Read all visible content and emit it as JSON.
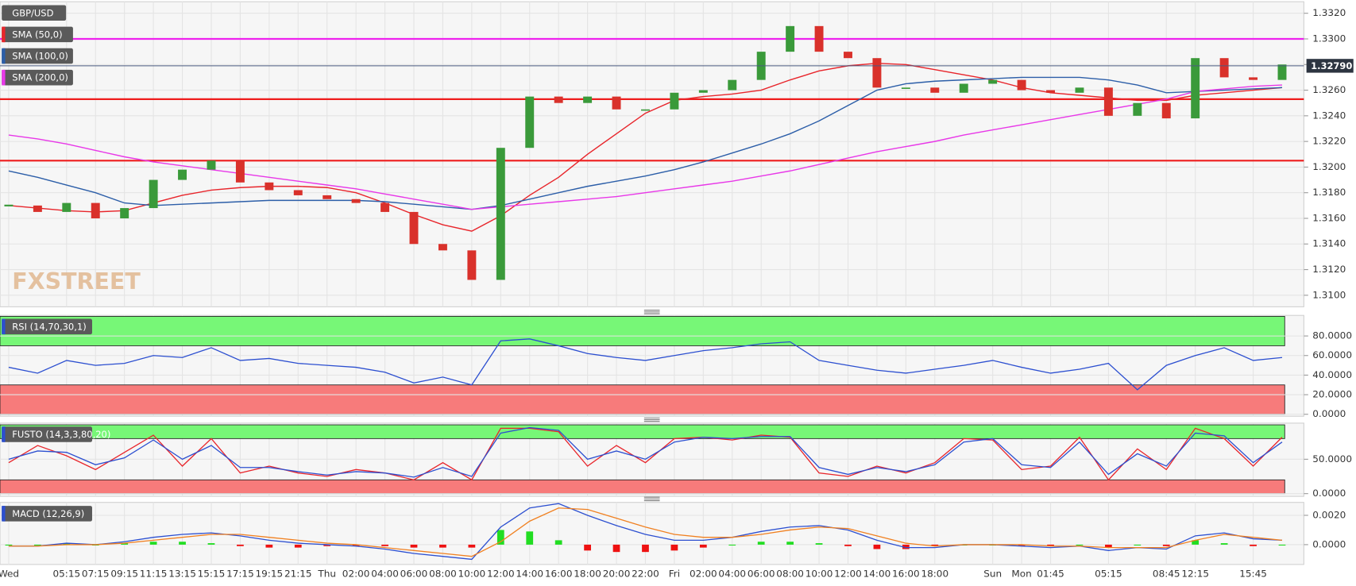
{
  "chart_data": [
    {
      "type": "candlestick",
      "title": "GBP/USD",
      "watermark": "FXSTREET",
      "up_color": "#3a9a3a",
      "down_color": "#d9312b",
      "values": [
        1.317,
        1.3165,
        1.3172,
        1.316,
        1.3168,
        1.319,
        1.3198,
        1.3205,
        1.3188,
        1.3182,
        1.3178,
        1.3175,
        1.3172,
        1.3165,
        1.314,
        1.3135,
        1.3112,
        1.3215,
        1.3255,
        1.325,
        1.3255,
        1.3245,
        1.3245,
        1.3258,
        1.326,
        1.3268,
        1.329,
        1.331,
        1.329,
        1.3285,
        1.3262,
        1.3262,
        1.3258,
        1.3265,
        1.3268,
        1.326,
        1.3258,
        1.3262,
        1.324,
        1.325,
        1.3238,
        1.3285,
        1.327,
        1.3268,
        1.328
      ],
      "series": [
        {
          "name": "SMA (50,0)",
          "color": "#e8252b",
          "values": [
            1.317,
            1.3168,
            1.3166,
            1.3165,
            1.3166,
            1.3172,
            1.3178,
            1.3182,
            1.3184,
            1.3185,
            1.3185,
            1.3184,
            1.318,
            1.3172,
            1.3163,
            1.3155,
            1.315,
            1.3162,
            1.3178,
            1.3192,
            1.321,
            1.3226,
            1.3242,
            1.3252,
            1.3255,
            1.3257,
            1.326,
            1.3268,
            1.3275,
            1.3279,
            1.3281,
            1.328,
            1.3276,
            1.3272,
            1.3268,
            1.3262,
            1.3258,
            1.3256,
            1.3254,
            1.3252,
            1.3252,
            1.3256,
            1.3258,
            1.326,
            1.3262
          ]
        },
        {
          "name": "SMA (100,0)",
          "color": "#2c5ea8",
          "values": [
            1.3197,
            1.3192,
            1.3186,
            1.318,
            1.3172,
            1.317,
            1.3171,
            1.3172,
            1.3173,
            1.3174,
            1.3174,
            1.3174,
            1.3174,
            1.3173,
            1.3171,
            1.3169,
            1.3167,
            1.317,
            1.3175,
            1.318,
            1.3185,
            1.3189,
            1.3193,
            1.3198,
            1.3204,
            1.3211,
            1.3218,
            1.3226,
            1.3236,
            1.3248,
            1.326,
            1.3265,
            1.3267,
            1.3268,
            1.3269,
            1.327,
            1.327,
            1.327,
            1.3268,
            1.3264,
            1.3258,
            1.3259,
            1.326,
            1.3261,
            1.3262
          ]
        },
        {
          "name": "SMA (200,0)",
          "color": "#e838e8",
          "values": [
            1.3225,
            1.3222,
            1.3218,
            1.3213,
            1.3208,
            1.3204,
            1.3201,
            1.3198,
            1.3195,
            1.3192,
            1.3189,
            1.3186,
            1.3183,
            1.3179,
            1.3175,
            1.3171,
            1.3167,
            1.3169,
            1.3171,
            1.3173,
            1.3175,
            1.3177,
            1.318,
            1.3183,
            1.3186,
            1.3189,
            1.3193,
            1.3197,
            1.3202,
            1.3207,
            1.3212,
            1.3216,
            1.322,
            1.3225,
            1.3229,
            1.3233,
            1.3237,
            1.3241,
            1.3245,
            1.3249,
            1.3253,
            1.3259,
            1.3261,
            1.3263,
            1.3264
          ]
        }
      ],
      "levels": [
        {
          "value": 1.33,
          "color": "#ee22ee"
        },
        {
          "value": 1.3253,
          "color": "#ee1c1c"
        },
        {
          "value": 1.3205,
          "color": "#ee1c1c"
        }
      ],
      "last": {
        "value": 1.3279,
        "label": "1.32790"
      },
      "ylim": [
        1.3091,
        1.3329
      ],
      "yticks": [
        {
          "value": 1.31,
          "label": "1.3100"
        },
        {
          "value": 1.312,
          "label": "1.3120"
        },
        {
          "value": 1.314,
          "label": "1.3140"
        },
        {
          "value": 1.316,
          "label": "1.3160"
        },
        {
          "value": 1.318,
          "label": "1.3180"
        },
        {
          "value": 1.32,
          "label": "1.3200"
        },
        {
          "value": 1.322,
          "label": "1.3220"
        },
        {
          "value": 1.324,
          "label": "1.3240"
        },
        {
          "value": 1.326,
          "label": "1.3260"
        },
        {
          "value": 1.328,
          "label": "1.3280"
        },
        {
          "value": 1.33,
          "label": "1.3300"
        },
        {
          "value": 1.332,
          "label": "1.3320"
        }
      ],
      "grid": true
    },
    {
      "type": "line",
      "title": "RSI (14,70,30,1)",
      "series": [
        {
          "color": "#2c4fd0",
          "values": [
            48,
            42,
            55,
            50,
            52,
            60,
            58,
            68,
            55,
            57,
            52,
            50,
            48,
            43,
            32,
            38,
            30,
            75,
            77,
            70,
            62,
            58,
            55,
            60,
            65,
            68,
            72,
            74,
            55,
            50,
            45,
            42,
            46,
            50,
            55,
            48,
            42,
            46,
            52,
            25,
            50,
            60,
            68,
            55,
            58
          ]
        }
      ],
      "bands": [
        {
          "from": 70,
          "to": 100,
          "color": "#77f777"
        },
        {
          "from": 0,
          "to": 30,
          "color": "#f77b7b"
        }
      ],
      "ylim": [
        -2,
        101
      ],
      "yticks": [
        {
          "value": 0,
          "label": "0.0000"
        },
        {
          "value": 20,
          "label": "20.0000"
        },
        {
          "value": 40,
          "label": "40.0000"
        },
        {
          "value": 60,
          "label": "60.0000"
        },
        {
          "value": 80,
          "label": "80.0000"
        }
      ],
      "grid": true
    },
    {
      "type": "line",
      "title": "FUSTO (14,3,3,80,20)",
      "series": [
        {
          "color": "#e8252b",
          "values": [
            45,
            70,
            55,
            35,
            60,
            85,
            40,
            80,
            30,
            40,
            30,
            25,
            35,
            30,
            20,
            45,
            20,
            95,
            95,
            90,
            40,
            70,
            45,
            80,
            82,
            78,
            85,
            82,
            30,
            25,
            40,
            30,
            45,
            80,
            78,
            35,
            40,
            82,
            20,
            65,
            35,
            95,
            80,
            40,
            82
          ]
        },
        {
          "color": "#2c4fd0",
          "values": [
            50,
            62,
            60,
            42,
            52,
            78,
            50,
            70,
            38,
            38,
            32,
            27,
            32,
            30,
            24,
            38,
            25,
            88,
            96,
            92,
            50,
            62,
            50,
            75,
            82,
            80,
            83,
            83,
            38,
            28,
            38,
            32,
            42,
            75,
            80,
            42,
            38,
            75,
            28,
            58,
            40,
            88,
            84,
            45,
            75
          ]
        }
      ],
      "bands": [
        {
          "from": 80,
          "to": 100,
          "color": "#77f777"
        },
        {
          "from": 0,
          "to": 20,
          "color": "#f77b7b"
        }
      ],
      "ylim": [
        -4,
        102.5
      ],
      "yticks": [
        {
          "value": 0,
          "label": "0.0000"
        },
        {
          "value": 50,
          "label": "50.0000"
        }
      ],
      "grid": true
    },
    {
      "type": "macd",
      "title": "MACD (12,26,9)",
      "categories": [
        "Wed",
        null,
        "05:15",
        "07:15",
        "09:15",
        "11:15",
        "13:15",
        "15:15",
        "17:15",
        "19:15",
        "21:15",
        "Thu",
        "02:00",
        "04:00",
        "06:00",
        "08:00",
        "10:00",
        "12:00",
        "14:00",
        "16:00",
        "18:00",
        "20:00",
        "22:00",
        "Fri",
        "02:00",
        "04:00",
        "06:00",
        "08:00",
        "10:00",
        "12:00",
        "14:00",
        "16:00",
        "18:00",
        null,
        "Sun",
        "Mon",
        "01:45",
        null,
        "05:15",
        null,
        "08:45",
        "12:15",
        null,
        "15:45",
        null
      ],
      "series": [
        {
          "color": "#2c4fd0",
          "values": [
            -0.0001,
            -0.0001,
            0.0001,
            0.0,
            0.0002,
            0.0005,
            0.0007,
            0.0008,
            0.0006,
            0.0003,
            0.0001,
            0.0,
            -0.0001,
            -0.0003,
            -0.0006,
            -0.0008,
            -0.001,
            0.0012,
            0.0025,
            0.0028,
            0.002,
            0.0013,
            0.0007,
            0.0003,
            0.0003,
            0.0005,
            0.0009,
            0.0012,
            0.0013,
            0.001,
            0.0003,
            -0.0002,
            -0.0002,
            0.0,
            0.0,
            -0.0001,
            -0.0002,
            -0.0001,
            -0.0004,
            -0.0002,
            -0.0003,
            0.0006,
            0.0008,
            0.0004,
            0.0003
          ]
        },
        {
          "color": "#f08020",
          "values": [
            -0.0001,
            -0.0001,
            0.0,
            0.0,
            0.0001,
            0.0003,
            0.0005,
            0.0007,
            0.0007,
            0.0005,
            0.0003,
            0.0001,
            0.0,
            -0.0002,
            -0.0004,
            -0.0006,
            -0.0008,
            0.0002,
            0.0016,
            0.0025,
            0.0024,
            0.0018,
            0.0012,
            0.0007,
            0.0005,
            0.0005,
            0.0007,
            0.001,
            0.0012,
            0.0011,
            0.0006,
            0.0001,
            -0.0001,
            0.0,
            0.0,
            0.0,
            -0.0001,
            -0.0001,
            -0.0002,
            -0.0002,
            -0.0002,
            0.0003,
            0.0007,
            0.0005,
            0.0003
          ]
        }
      ],
      "histogram": [
        0,
        0,
        0.0001,
        0,
        0.0001,
        0.0002,
        0.0002,
        0.0001,
        -0.0001,
        -0.0002,
        -0.0002,
        -0.0001,
        -0.0001,
        -0.0001,
        -0.0002,
        -0.0002,
        -0.0002,
        0.001,
        0.0009,
        0.0003,
        -0.0004,
        -0.0005,
        -0.0005,
        -0.0004,
        -0.0002,
        0,
        0.0002,
        0.0002,
        0.0001,
        -0.0001,
        -0.0003,
        -0.0003,
        -0.0001,
        0,
        0,
        -0.0001,
        -0.0001,
        0,
        -0.0002,
        0,
        -0.0001,
        0.0003,
        0.0001,
        -0.0001,
        0
      ],
      "up_color": "#22dd22",
      "down_color": "#ee1111",
      "ylim": [
        -0.00135,
        0.00288
      ],
      "yticks": [
        {
          "value": 0,
          "label": "0.0000"
        },
        {
          "value": 0.002,
          "label": "0.0020"
        }
      ],
      "grid": true
    }
  ]
}
